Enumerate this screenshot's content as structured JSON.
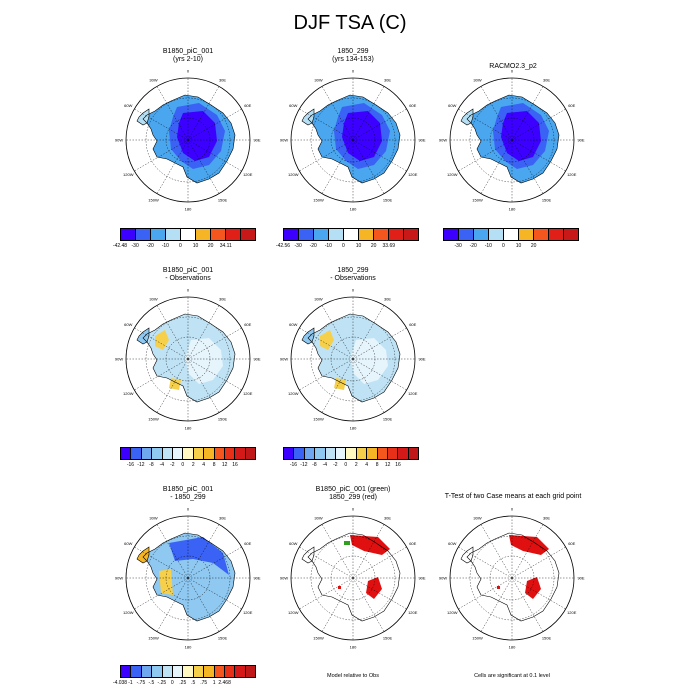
{
  "title": "DJF TSA (C)",
  "colors": {
    "scale": [
      "#3b00ff",
      "#3a62f5",
      "#4aa6ee",
      "#b5dff4",
      "#fff",
      "#f6b524",
      "#f5561d",
      "#e02018",
      "#c81818"
    ],
    "diff_scale": [
      "#3b00ff",
      "#3a62f5",
      "#6fa8ee",
      "#8fc8f0",
      "#bfe3f5",
      "#e6f4fb",
      "#fff8c0",
      "#f6d04b",
      "#f6b524",
      "#f5561d",
      "#e83018",
      "#d51818",
      "#c01818"
    ],
    "sig_a": "#e01010",
    "sig_b": "#2ea01e"
  },
  "map_labels": [
    "0",
    "30E",
    "60E",
    "90E",
    "120E",
    "150E",
    "180",
    "150W",
    "120W",
    "90W",
    "60W",
    "30W"
  ],
  "panels": [
    {
      "title": "B1850_piC_001\n(yrs 2-10)",
      "style": "cold"
    },
    {
      "title": "1850_299\n(yrs 134-153)",
      "style": "cold"
    },
    {
      "title": "RACMO2.3_p2",
      "style": "cold"
    },
    {
      "title": "B1850_piC_001\n- Observations",
      "style": "bias"
    },
    {
      "title": "1850_299\n- Observations",
      "style": "bias"
    },
    {
      "title": "B1850_piC_001\n- 1850_299",
      "style": "diff"
    },
    {
      "title": "B1850_piC_001 (green)\n1850_299 (red)",
      "style": "sig2"
    },
    {
      "title": "T-Test of two Case means at each grid point",
      "style": "sig"
    }
  ],
  "colorbars": [
    {
      "labels": [
        "-42.48",
        "-30",
        "-20",
        "-10",
        "0",
        "10",
        "20",
        "34.11"
      ]
    },
    {
      "labels": [
        "-42.56",
        "-30",
        "-20",
        "-10",
        "0",
        "10",
        "20",
        "33.69"
      ]
    },
    {
      "labels": [
        "-30",
        "-20",
        "-10",
        "0",
        "10",
        "20"
      ]
    },
    {
      "labels": [
        "-16",
        "-12",
        "-8",
        "-4",
        "-2",
        "0",
        "2",
        "4",
        "8",
        "12",
        "16"
      ]
    },
    {
      "labels": [
        "-16",
        "-12",
        "-8",
        "-4",
        "-2",
        "0",
        "2",
        "4",
        "8",
        "12",
        "16"
      ]
    },
    {
      "labels": [
        "-4.038",
        "-1",
        "-.75",
        "-.5",
        "-.25",
        "0",
        ".25",
        ".5",
        ".75",
        "1",
        "2.468"
      ]
    }
  ],
  "footnotes": {
    "model_obs": "Model relative to Obs",
    "significance": "Cells are significant at 0.1 level"
  }
}
